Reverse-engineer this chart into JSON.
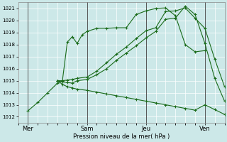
{
  "xlabel": "Pression niveau de la mer( hPa )",
  "bg_color": "#cce8e8",
  "grid_color": "#ffffff",
  "line_color": "#1a6b1a",
  "ylim": [
    1011.5,
    1021.5
  ],
  "yticks": [
    1012,
    1013,
    1014,
    1015,
    1016,
    1017,
    1018,
    1019,
    1020,
    1021
  ],
  "day_labels": [
    "Mer",
    "Sam",
    "Jeu",
    "Ven"
  ],
  "vline_x": [
    0,
    36,
    72,
    108
  ],
  "xlim": [
    -6,
    120
  ],
  "lines": [
    {
      "x": [
        0,
        6,
        12,
        18,
        21,
        24,
        27,
        30,
        33,
        36,
        42,
        48,
        54,
        60,
        66,
        72,
        78,
        84,
        90,
        96,
        102,
        108
      ],
      "y": [
        1012.5,
        1013.2,
        1014.0,
        1014.8,
        1015.0,
        1018.2,
        1018.65,
        1018.1,
        1018.8,
        1019.1,
        1019.35,
        1019.35,
        1019.4,
        1019.4,
        1020.5,
        1020.8,
        1021.0,
        1021.05,
        1020.4,
        1018.0,
        1017.4,
        1017.5
      ]
    },
    {
      "x": [
        18,
        21,
        24,
        27,
        30,
        36,
        42,
        48,
        54,
        60,
        66,
        72,
        78,
        84,
        90,
        96,
        102,
        108,
        114,
        120
      ],
      "y": [
        1015.0,
        1015.0,
        1015.05,
        1015.1,
        1015.2,
        1015.3,
        1015.8,
        1016.5,
        1017.2,
        1017.8,
        1018.5,
        1019.15,
        1019.4,
        1020.75,
        1020.8,
        1021.05,
        1020.2,
        1019.35,
        1016.8,
        1014.5
      ]
    },
    {
      "x": [
        18,
        21,
        24,
        27,
        30,
        36,
        42,
        48,
        54,
        60,
        66,
        72,
        78,
        84,
        90,
        96,
        102,
        108,
        114,
        120
      ],
      "y": [
        1015.0,
        1014.9,
        1014.85,
        1014.8,
        1015.0,
        1015.1,
        1015.5,
        1016.0,
        1016.7,
        1017.3,
        1017.9,
        1018.55,
        1019.1,
        1020.1,
        1020.2,
        1021.2,
        1020.5,
        1018.1,
        1015.2,
        1013.3
      ]
    },
    {
      "x": [
        18,
        21,
        24,
        27,
        30,
        36,
        42,
        48,
        54,
        60,
        66,
        72,
        78,
        84,
        90,
        96,
        102,
        108,
        114,
        120
      ],
      "y": [
        1015.0,
        1014.7,
        1014.5,
        1014.4,
        1014.3,
        1014.2,
        1014.05,
        1013.9,
        1013.75,
        1013.6,
        1013.45,
        1013.3,
        1013.15,
        1013.0,
        1012.85,
        1012.7,
        1012.55,
        1013.0,
        1012.6,
        1012.2
      ]
    }
  ]
}
